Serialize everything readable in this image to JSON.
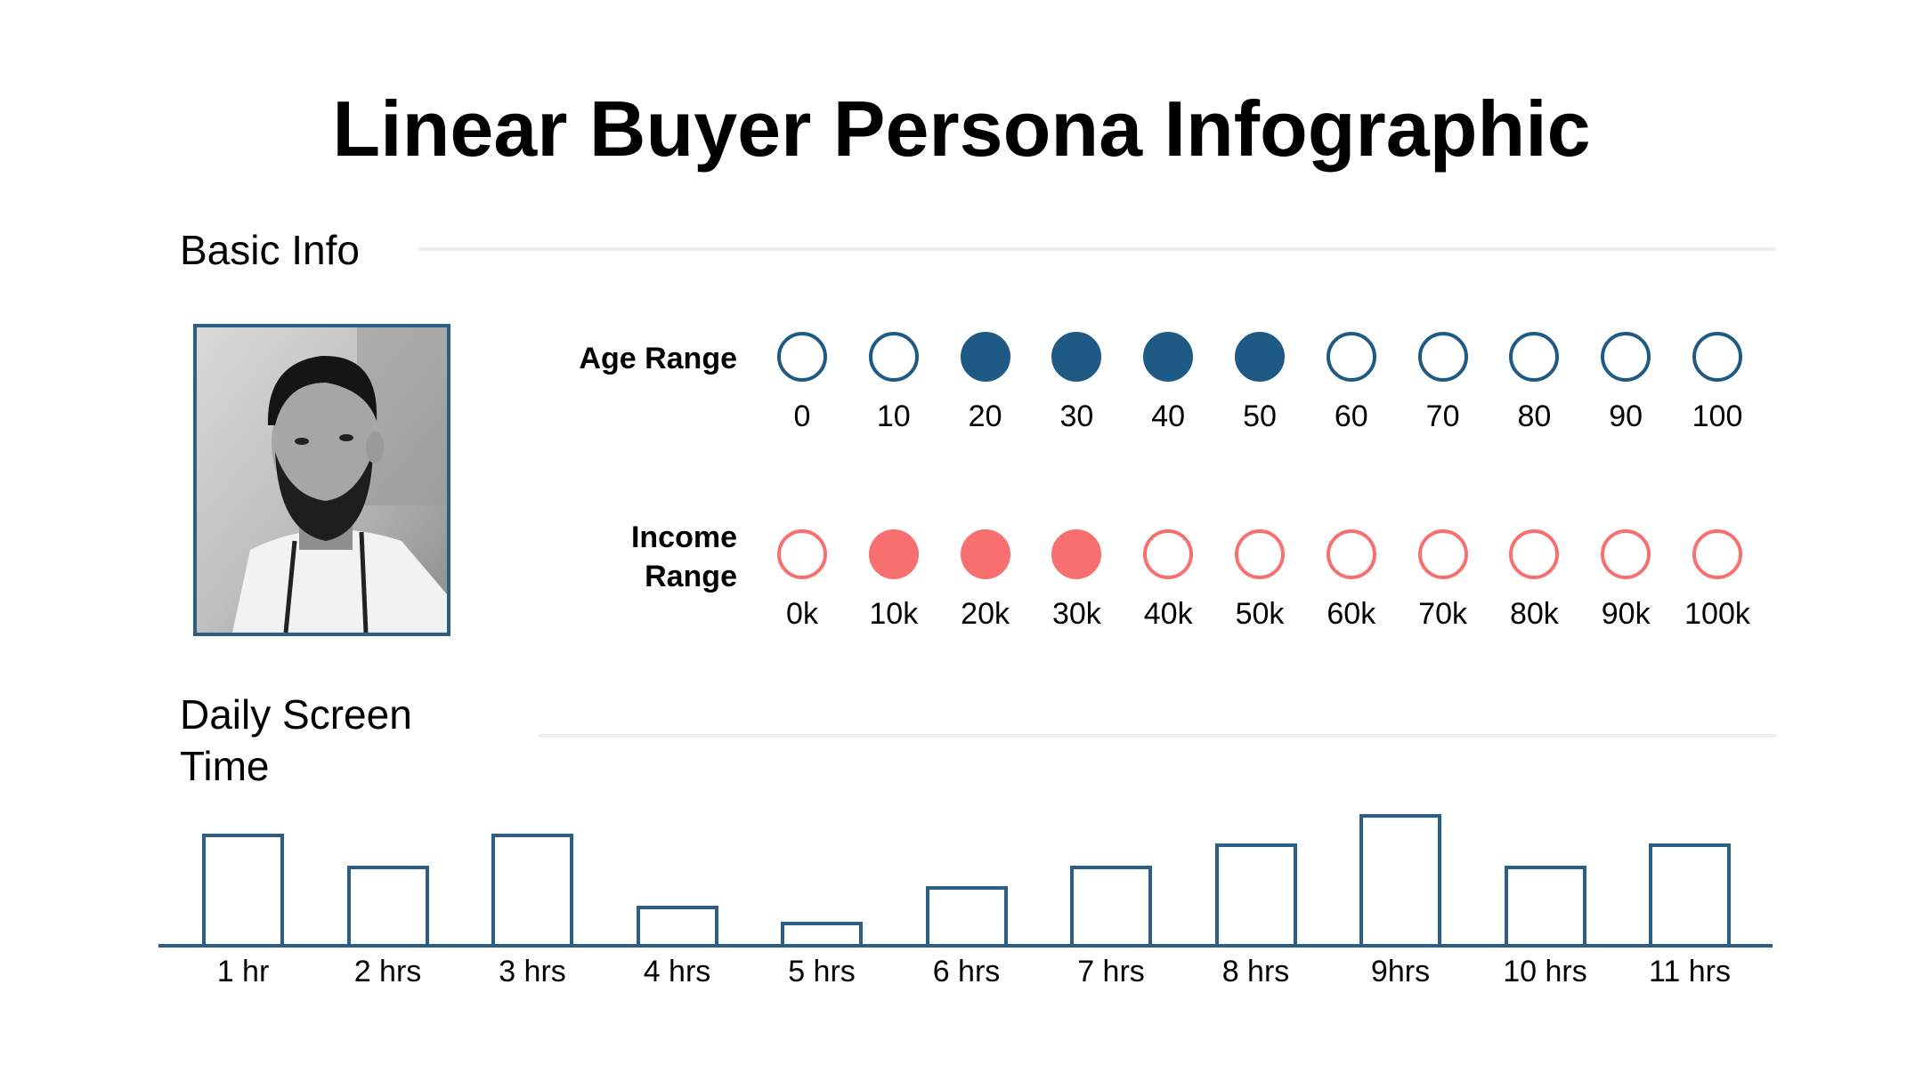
{
  "title": "Linear Buyer Persona Infographic",
  "sections": {
    "basic_info": "Basic Info",
    "screen_time_line1": "Daily Screen",
    "screen_time_line2": "Time"
  },
  "colors": {
    "navy": "#1f5a85",
    "coral": "#f76f6f",
    "rule": "#eeeeee"
  },
  "photo": {
    "icon": "person-portrait-icon"
  },
  "age_range": {
    "label": "Age Range",
    "ticks": [
      "0",
      "10",
      "20",
      "30",
      "40",
      "50",
      "60",
      "70",
      "80",
      "90",
      "100"
    ],
    "filled": [
      false,
      false,
      true,
      true,
      true,
      true,
      false,
      false,
      false,
      false,
      false
    ]
  },
  "income_range": {
    "label_line1": "Income",
    "label_line2": "Range",
    "ticks": [
      "0k",
      "10k",
      "20k",
      "30k",
      "40k",
      "50k",
      "60k",
      "70k",
      "80k",
      "90k",
      "100k"
    ],
    "filled": [
      false,
      true,
      true,
      true,
      false,
      false,
      false,
      false,
      false,
      false,
      false
    ]
  },
  "chart_data": {
    "type": "bar",
    "title": "",
    "xlabel": "",
    "ylabel": "",
    "categories": [
      "1 hr",
      "2 hrs",
      "3 hrs",
      "4 hrs",
      "5 hrs",
      "6 hrs",
      "7 hrs",
      "8 hrs",
      "9hrs",
      "10 hrs",
      "11 hrs"
    ],
    "values": [
      7.0,
      5.0,
      7.0,
      2.5,
      1.5,
      3.7,
      5.0,
      6.4,
      8.2,
      5.0,
      6.4
    ],
    "ylim": [
      0,
      10
    ],
    "grid": false,
    "legend": "none"
  }
}
